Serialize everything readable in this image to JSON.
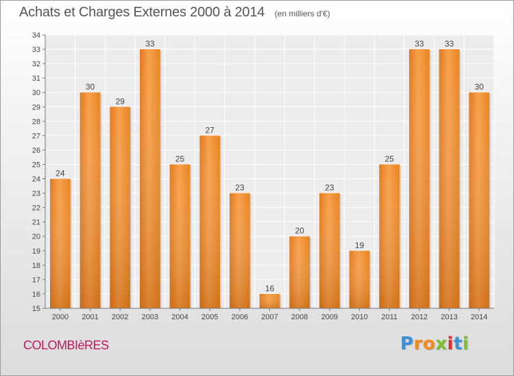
{
  "chart_data": {
    "type": "bar",
    "title": "Achats et Charges Externes 2000 à 2014",
    "unit": "(en milliers d'€)",
    "categories": [
      "2000",
      "2001",
      "2002",
      "2003",
      "2004",
      "2005",
      "2006",
      "2007",
      "2008",
      "2009",
      "2010",
      "2011",
      "2012",
      "2013",
      "2014"
    ],
    "values": [
      24,
      30,
      29,
      33,
      25,
      27,
      23,
      16,
      20,
      23,
      19,
      25,
      33,
      33,
      30
    ],
    "ylim": [
      15,
      34
    ],
    "yticks": [
      15,
      16,
      17,
      18,
      19,
      20,
      21,
      22,
      23,
      24,
      25,
      26,
      27,
      28,
      29,
      30,
      31,
      32,
      33,
      34
    ],
    "grid": true,
    "bar_color": "#f0922e"
  },
  "commune": "COLOMBIèRES",
  "brand": {
    "letters": [
      "P",
      "r",
      "o",
      "x",
      "i",
      "t",
      "i"
    ],
    "colors": [
      "#3a8fd6",
      "#f08a1c",
      "#f08a1c",
      "#7cbf2f",
      "#d6312f",
      "#3a8fd6",
      "#7cbf2f"
    ]
  }
}
